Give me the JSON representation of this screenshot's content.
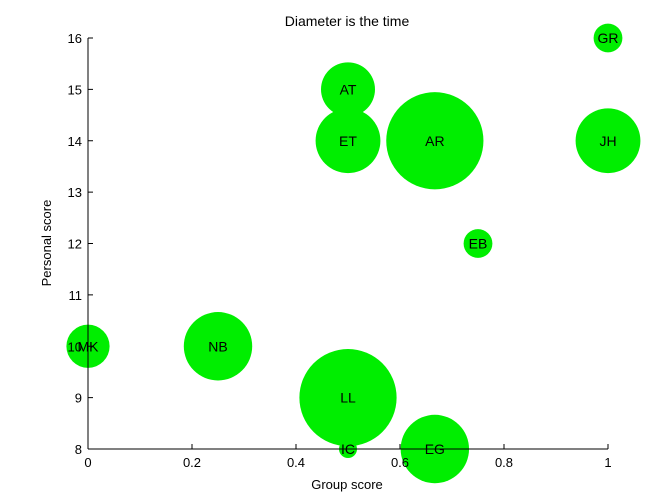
{
  "chart_data": {
    "type": "scatter",
    "title": "Diameter is the time",
    "xlabel": "Group score",
    "ylabel": "Personal score",
    "xlim": [
      0,
      1
    ],
    "ylim": [
      8,
      16
    ],
    "xticks": [
      0,
      0.2,
      0.4,
      0.6,
      0.8,
      1
    ],
    "xtick_labels": [
      "0",
      "0.2",
      "0.4",
      "0.6",
      "0.8",
      "1"
    ],
    "yticks": [
      8,
      9,
      10,
      11,
      12,
      13,
      14,
      15,
      16
    ],
    "ytick_labels": [
      "8",
      "9",
      "10",
      "11",
      "12",
      "13",
      "14",
      "15",
      "16"
    ],
    "grid": false,
    "marker_color": "#00ee00",
    "points": [
      {
        "label": "GR",
        "x": 1.0,
        "y": 16,
        "size": 0.8
      },
      {
        "label": "AT",
        "x": 0.5,
        "y": 15,
        "size": 1.5
      },
      {
        "label": "ET",
        "x": 0.5,
        "y": 14,
        "size": 1.8
      },
      {
        "label": "AR",
        "x": 0.667,
        "y": 14,
        "size": 2.7
      },
      {
        "label": "JH",
        "x": 1.0,
        "y": 14,
        "size": 1.8
      },
      {
        "label": "EB",
        "x": 0.75,
        "y": 12,
        "size": 0.8
      },
      {
        "label": "MK",
        "x": 0.0,
        "y": 10,
        "size": 1.2
      },
      {
        "label": "NB",
        "x": 0.25,
        "y": 10,
        "size": 1.9
      },
      {
        "label": "LL",
        "x": 0.5,
        "y": 9,
        "size": 2.7
      },
      {
        "label": "IC",
        "x": 0.5,
        "y": 8,
        "size": 0.5
      },
      {
        "label": "EG",
        "x": 0.667,
        "y": 8,
        "size": 1.9
      }
    ]
  }
}
